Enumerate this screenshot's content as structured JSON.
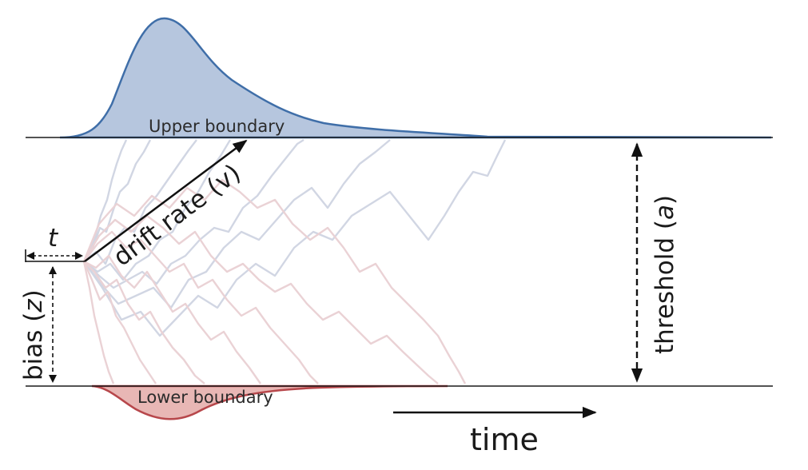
{
  "labels": {
    "upper_boundary": "Upper boundary",
    "lower_boundary": "Lower boundary",
    "drift_rate": "drift rate (v)",
    "threshold_word": "threshold (",
    "threshold_symbol": "a",
    "threshold_close": ")",
    "bias_word": "bias (",
    "bias_symbol": "z",
    "bias_close": ")",
    "nondecision": "t",
    "time": "time"
  },
  "colors": {
    "upper_fill": "#a9bcd8",
    "upper_stroke": "#3f6ea8",
    "lower_fill": "#e4aaa8",
    "lower_stroke": "#b7474b",
    "upper_trace": "#a5aec9",
    "lower_trace": "#d7a6ac",
    "boundary_line": "#1a1a1a"
  }
}
